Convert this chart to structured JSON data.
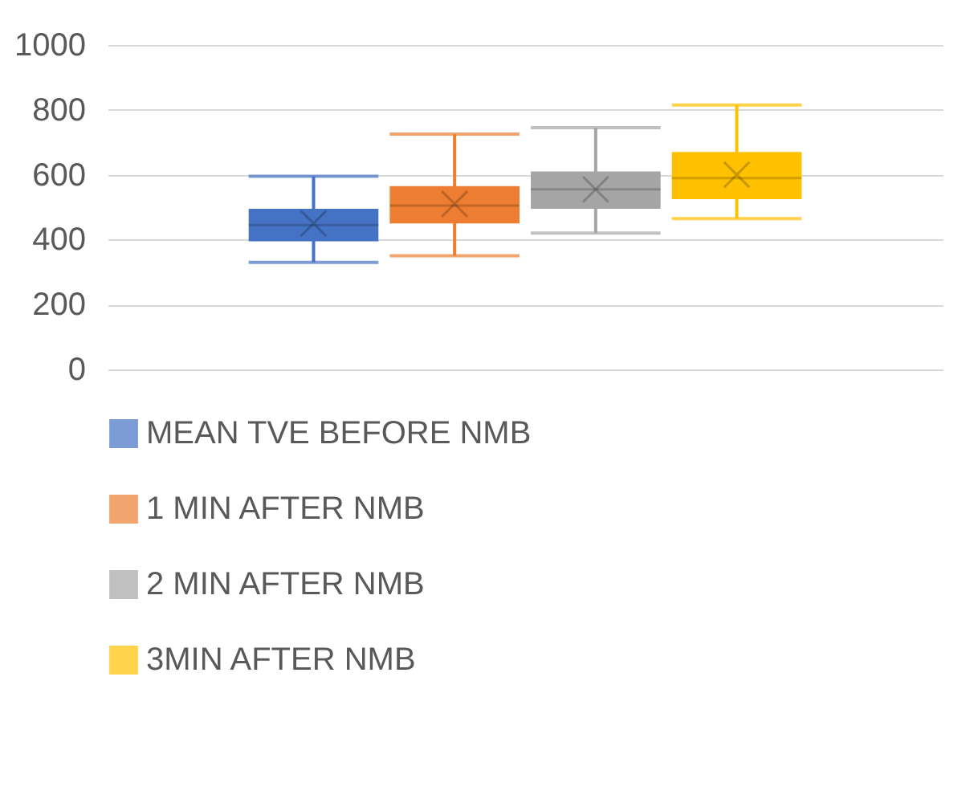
{
  "chart_data": {
    "type": "box",
    "categories": [
      null
    ],
    "series": [
      {
        "name": "MEAN TVE BEFORE NMB",
        "color": "#4472c4",
        "boxes": [
          {
            "low": 330,
            "q1": 395,
            "median": 445,
            "q3": 495,
            "high": 595,
            "mean": 450
          }
        ]
      },
      {
        "name": "1 MIN AFTER NMB",
        "color": "#ed7d31",
        "boxes": [
          {
            "low": 350,
            "q1": 450,
            "median": 505,
            "q3": 565,
            "high": 725,
            "mean": 510
          }
        ]
      },
      {
        "name": "2 MIN AFTER NMB",
        "color": "#a5a5a5",
        "boxes": [
          {
            "low": 420,
            "q1": 495,
            "median": 555,
            "q3": 610,
            "high": 745,
            "mean": 555
          }
        ]
      },
      {
        "name": "3MIN AFTER NMB",
        "color": "#ffc000",
        "boxes": [
          {
            "low": 465,
            "q1": 525,
            "median": 590,
            "q3": 670,
            "high": 815,
            "mean": 600
          }
        ]
      }
    ],
    "ylim": [
      0,
      1000
    ],
    "yticks": [
      0,
      200,
      400,
      600,
      800,
      1000
    ],
    "grid": "y",
    "legend": "bottom",
    "tick_labels": "y"
  }
}
